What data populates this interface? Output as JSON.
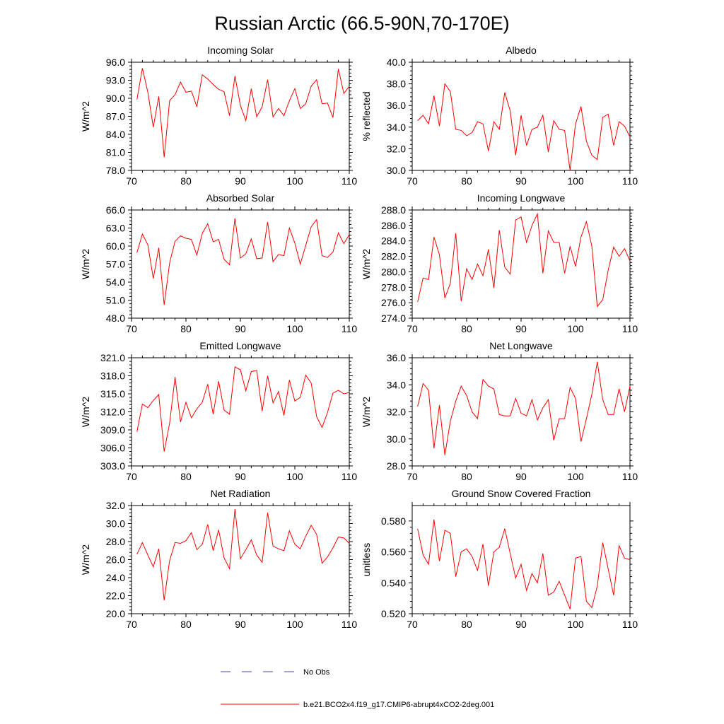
{
  "figure": {
    "title": "Russian Arctic (66.5-90N,70-170E)",
    "line_color": "#ff0000",
    "obs_color": "#4a4aa8"
  },
  "legend": {
    "obs_label": "No Obs",
    "model_label": "b.e21.BCO2x4.f19_g17.CMIP6-abrupt4xCO2-2deg.001"
  },
  "chart_data": [
    {
      "type": "line",
      "title": "Incoming Solar",
      "ylabel": "W/m^2",
      "xlim": [
        70,
        110
      ],
      "xticks": [
        70,
        80,
        90,
        100,
        110
      ],
      "ylim": [
        78,
        96
      ],
      "yticks": [
        78,
        81,
        84,
        87,
        90,
        93,
        96
      ],
      "ydecimals": 1,
      "x": [
        71,
        72,
        73,
        74,
        75,
        76,
        77,
        78,
        79,
        80,
        81,
        82,
        83,
        84,
        85,
        86,
        87,
        88,
        89,
        90,
        91,
        92,
        93,
        94,
        95,
        96,
        97,
        98,
        99,
        100,
        101,
        102,
        103,
        104,
        105,
        106,
        107,
        108,
        109,
        110
      ],
      "values": [
        89.8,
        95.0,
        91.0,
        85.2,
        90.3,
        80.2,
        89.6,
        90.6,
        92.7,
        91.0,
        91.2,
        88.6,
        93.9,
        93.2,
        92.3,
        91.5,
        91.1,
        87.1,
        93.7,
        88.8,
        86.3,
        91.6,
        86.9,
        88.6,
        93.1,
        86.9,
        88.3,
        87.1,
        89.6,
        91.6,
        88.3,
        89.1,
        92.0,
        93.1,
        89.1,
        89.2,
        86.8,
        94.9,
        90.8,
        92.0
      ]
    },
    {
      "type": "line",
      "title": "Albedo",
      "ylabel": "% reflected",
      "xlim": [
        70,
        110
      ],
      "xticks": [
        70,
        80,
        90,
        100,
        110
      ],
      "ylim": [
        30,
        40
      ],
      "yticks": [
        30,
        32,
        34,
        36,
        38,
        40
      ],
      "ydecimals": 1,
      "x": [
        71,
        72,
        73,
        74,
        75,
        76,
        77,
        78,
        79,
        80,
        81,
        82,
        83,
        84,
        85,
        86,
        87,
        88,
        89,
        90,
        91,
        92,
        93,
        94,
        95,
        96,
        97,
        98,
        99,
        100,
        101,
        102,
        103,
        104,
        105,
        106,
        107,
        108,
        109,
        110
      ],
      "values": [
        34.6,
        35.1,
        34.3,
        36.9,
        34.1,
        38.0,
        37.3,
        33.8,
        33.7,
        33.2,
        33.5,
        34.5,
        34.3,
        31.8,
        34.5,
        33.8,
        37.2,
        35.5,
        31.4,
        35.1,
        32.3,
        33.8,
        34.0,
        35.1,
        31.7,
        34.6,
        33.8,
        33.7,
        30.0,
        34.3,
        35.9,
        32.7,
        31.4,
        31.0,
        34.9,
        35.2,
        32.3,
        34.5,
        34.1,
        33.1
      ]
    },
    {
      "type": "line",
      "title": "Absorbed Solar",
      "ylabel": "W/m^2",
      "xlim": [
        70,
        110
      ],
      "xticks": [
        70,
        80,
        90,
        100,
        110
      ],
      "ylim": [
        48,
        66
      ],
      "yticks": [
        48,
        51,
        54,
        57,
        60,
        63,
        66
      ],
      "ydecimals": 1,
      "x": [
        71,
        72,
        73,
        74,
        75,
        76,
        77,
        78,
        79,
        80,
        81,
        82,
        83,
        84,
        85,
        86,
        87,
        88,
        89,
        90,
        91,
        92,
        93,
        94,
        95,
        96,
        97,
        98,
        99,
        100,
        101,
        102,
        103,
        104,
        105,
        106,
        107,
        108,
        109,
        110
      ],
      "values": [
        58.9,
        62.0,
        60.2,
        54.6,
        59.7,
        50.2,
        57.2,
        60.8,
        61.7,
        61.3,
        61.1,
        58.5,
        62.1,
        63.7,
        60.7,
        61.1,
        57.8,
        56.9,
        64.6,
        58.0,
        58.7,
        61.2,
        57.9,
        58.0,
        64.0,
        57.4,
        58.6,
        58.4,
        63.0,
        60.5,
        57.0,
        60.1,
        63.2,
        64.4,
        58.4,
        58.1,
        59.0,
        62.2,
        60.4,
        61.9
      ]
    },
    {
      "type": "line",
      "title": "Incoming Longwave",
      "ylabel": "W/m^2",
      "xlim": [
        70,
        110
      ],
      "xticks": [
        70,
        80,
        90,
        100,
        110
      ],
      "ylim": [
        274,
        288
      ],
      "yticks": [
        274,
        276,
        278,
        280,
        282,
        284,
        286,
        288
      ],
      "ydecimals": 1,
      "x": [
        71,
        72,
        73,
        74,
        75,
        76,
        77,
        78,
        79,
        80,
        81,
        82,
        83,
        84,
        85,
        86,
        87,
        88,
        89,
        90,
        91,
        92,
        93,
        94,
        95,
        96,
        97,
        98,
        99,
        100,
        101,
        102,
        103,
        104,
        105,
        106,
        107,
        108,
        109,
        110
      ],
      "values": [
        276.1,
        279.2,
        279.0,
        284.5,
        282.2,
        276.6,
        278.5,
        285.0,
        276.2,
        280.4,
        279.0,
        281.0,
        279.5,
        282.9,
        277.9,
        285.4,
        280.6,
        279.7,
        286.7,
        287.1,
        283.8,
        286.0,
        287.5,
        279.8,
        285.3,
        283.8,
        283.8,
        279.8,
        283.3,
        280.7,
        284.5,
        286.5,
        283.3,
        275.5,
        276.4,
        280.2,
        283.2,
        282.0,
        283.0,
        281.4
      ]
    },
    {
      "type": "line",
      "title": "Emitted Longwave",
      "ylabel": "W/m^2",
      "xlim": [
        70,
        110
      ],
      "xticks": [
        70,
        80,
        90,
        100,
        110
      ],
      "ylim": [
        303,
        321
      ],
      "yticks": [
        303,
        306,
        309,
        312,
        315,
        318,
        321
      ],
      "ydecimals": 1,
      "x": [
        71,
        72,
        73,
        74,
        75,
        76,
        77,
        78,
        79,
        80,
        81,
        82,
        83,
        84,
        85,
        86,
        87,
        88,
        89,
        90,
        91,
        92,
        93,
        94,
        95,
        96,
        97,
        98,
        99,
        100,
        101,
        102,
        103,
        104,
        105,
        106,
        107,
        108,
        109,
        110
      ],
      "values": [
        308.7,
        313.3,
        312.7,
        313.9,
        314.9,
        305.4,
        310.1,
        317.8,
        310.3,
        313.6,
        311.0,
        312.5,
        313.6,
        316.6,
        311.6,
        317.1,
        312.3,
        311.6,
        319.5,
        319.0,
        315.5,
        318.7,
        318.9,
        312.1,
        318.0,
        313.5,
        315.4,
        311.4,
        317.3,
        313.8,
        314.4,
        318.1,
        316.8,
        311.2,
        309.4,
        311.9,
        315.1,
        315.6,
        315.0,
        315.2
      ]
    },
    {
      "type": "line",
      "title": "Net Longwave",
      "ylabel": "W/m^2",
      "xlim": [
        70,
        110
      ],
      "xticks": [
        70,
        80,
        90,
        100,
        110
      ],
      "ylim": [
        28,
        36
      ],
      "yticks": [
        28,
        30,
        32,
        34,
        36
      ],
      "ydecimals": 1,
      "x": [
        71,
        72,
        73,
        74,
        75,
        76,
        77,
        78,
        79,
        80,
        81,
        82,
        83,
        84,
        85,
        86,
        87,
        88,
        89,
        90,
        91,
        92,
        93,
        94,
        95,
        96,
        97,
        98,
        99,
        100,
        101,
        102,
        103,
        104,
        105,
        106,
        107,
        108,
        109,
        110
      ],
      "values": [
        32.4,
        34.1,
        33.6,
        29.3,
        32.5,
        28.8,
        31.3,
        32.8,
        33.9,
        33.2,
        32.0,
        31.5,
        34.4,
        33.9,
        33.7,
        31.8,
        31.7,
        31.7,
        33.0,
        31.9,
        31.7,
        32.9,
        31.4,
        32.3,
        32.9,
        29.9,
        31.5,
        31.5,
        33.8,
        33.0,
        29.8,
        31.5,
        33.3,
        35.7,
        32.9,
        31.8,
        31.8,
        33.7,
        32.0,
        33.9
      ]
    },
    {
      "type": "line",
      "title": "Net Radiation",
      "ylabel": "W/m^2",
      "xlim": [
        70,
        110
      ],
      "xticks": [
        70,
        80,
        90,
        100,
        110
      ],
      "ylim": [
        20,
        32
      ],
      "yticks": [
        20,
        22,
        24,
        26,
        28,
        30,
        32
      ],
      "ydecimals": 1,
      "x": [
        71,
        72,
        73,
        74,
        75,
        76,
        77,
        78,
        79,
        80,
        81,
        82,
        83,
        84,
        85,
        86,
        87,
        88,
        89,
        90,
        91,
        92,
        93,
        94,
        95,
        96,
        97,
        98,
        99,
        100,
        101,
        102,
        103,
        104,
        105,
        106,
        107,
        108,
        109,
        110
      ],
      "values": [
        26.6,
        27.9,
        26.5,
        25.2,
        27.2,
        21.5,
        25.9,
        27.9,
        27.8,
        28.1,
        29.0,
        27.1,
        27.7,
        29.9,
        27.0,
        29.3,
        26.2,
        25.0,
        31.6,
        26.1,
        27.1,
        28.2,
        26.5,
        25.7,
        31.2,
        27.5,
        27.2,
        27.0,
        29.2,
        27.7,
        27.2,
        28.6,
        29.8,
        28.8,
        25.6,
        26.3,
        27.3,
        28.5,
        28.4,
        27.8
      ]
    },
    {
      "type": "line",
      "title": "Ground Snow Covered Fraction",
      "ylabel": "unitless",
      "xlim": [
        70,
        110
      ],
      "xticks": [
        70,
        80,
        90,
        100,
        110
      ],
      "ylim": [
        0.52,
        0.59
      ],
      "yticks": [
        0.52,
        0.54,
        0.56,
        0.58
      ],
      "ydecimals": 3,
      "x": [
        71,
        72,
        73,
        74,
        75,
        76,
        77,
        78,
        79,
        80,
        81,
        82,
        83,
        84,
        85,
        86,
        87,
        88,
        89,
        90,
        91,
        92,
        93,
        94,
        95,
        96,
        97,
        98,
        99,
        100,
        101,
        102,
        103,
        104,
        105,
        106,
        107,
        108,
        109,
        110
      ],
      "values": [
        0.575,
        0.558,
        0.552,
        0.581,
        0.554,
        0.574,
        0.572,
        0.544,
        0.56,
        0.562,
        0.557,
        0.548,
        0.565,
        0.538,
        0.56,
        0.563,
        0.575,
        0.559,
        0.543,
        0.552,
        0.535,
        0.546,
        0.54,
        0.559,
        0.532,
        0.534,
        0.541,
        0.532,
        0.523,
        0.556,
        0.557,
        0.528,
        0.524,
        0.538,
        0.566,
        0.549,
        0.532,
        0.564,
        0.556,
        0.555
      ]
    }
  ]
}
